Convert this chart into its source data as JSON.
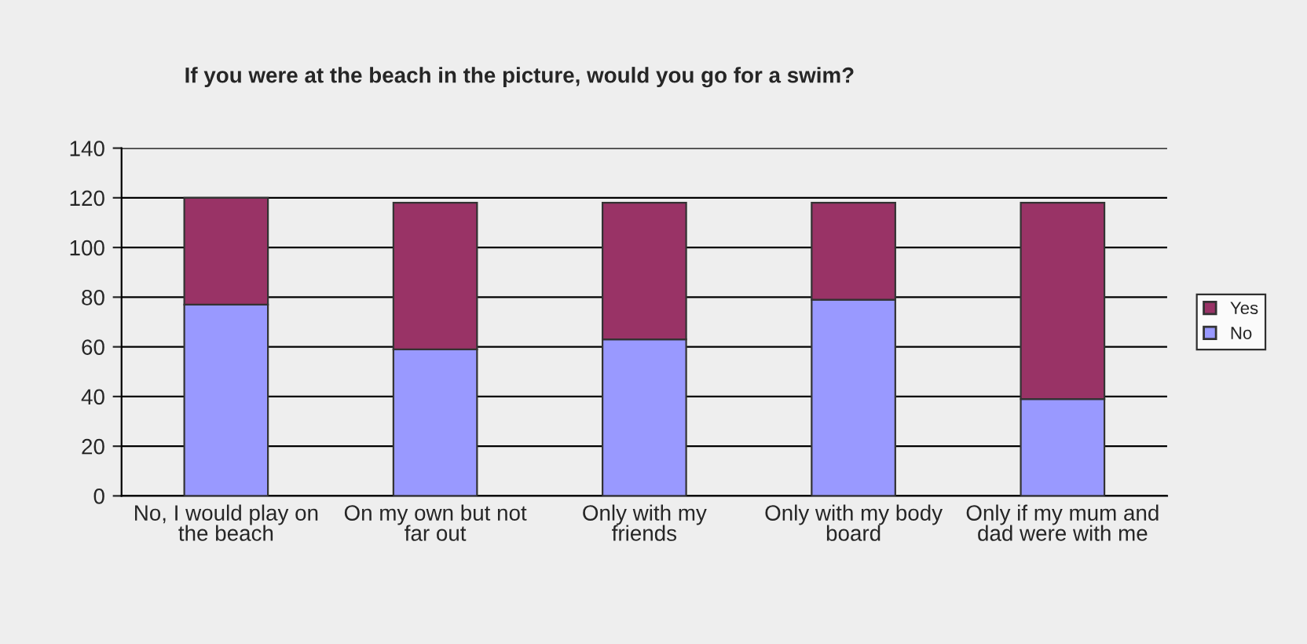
{
  "chart_data": {
    "type": "bar",
    "stacked": true,
    "title": "If you were at the beach in the picture, would you go for a swim?",
    "categories": [
      "No, I would play on the beach",
      "On my own but not far out",
      "Only with my friends",
      "Only with my body board",
      "Only if my mum and dad were with me"
    ],
    "series": [
      {
        "name": "No",
        "color": "#9999ff",
        "values": [
          77,
          59,
          63,
          79,
          39
        ]
      },
      {
        "name": "Yes",
        "color": "#993366",
        "values": [
          43,
          59,
          55,
          39,
          79
        ]
      }
    ],
    "ylim": [
      0,
      140
    ],
    "yticks": [
      0,
      20,
      40,
      60,
      80,
      100,
      120,
      140
    ],
    "grid": "y",
    "legend": "right"
  }
}
